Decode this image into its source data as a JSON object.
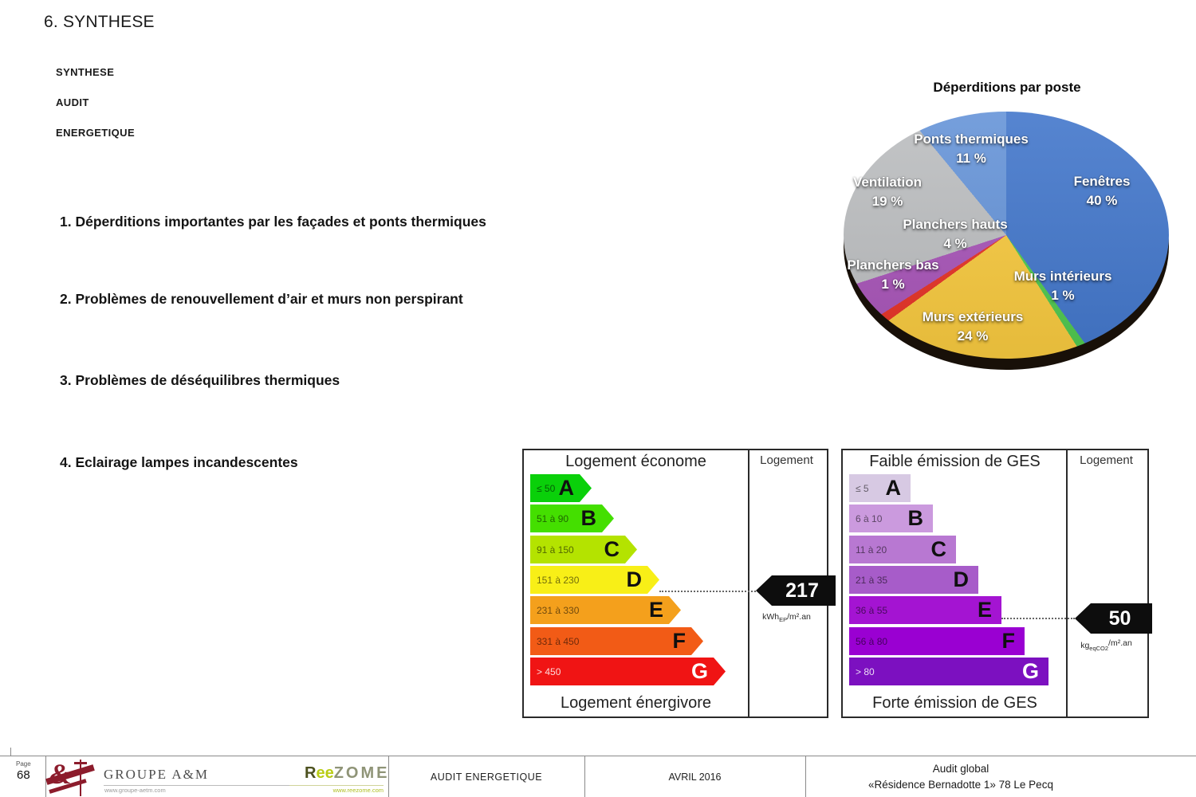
{
  "page": {
    "title": "6. SYNTHESE",
    "sidebar": [
      "SYNTHESE",
      "AUDIT",
      "ENERGETIQUE"
    ],
    "findings": [
      "1. Déperditions importantes par les façades et ponts thermiques",
      "2. Problèmes de renouvellement d’air et murs non perspirant",
      "3. Problèmes de déséquilibres thermiques",
      "4. Eclairage lampes incandescentes"
    ]
  },
  "chart_data": {
    "type": "pie",
    "title": "Déperditions par poste",
    "categories": [
      "Fenêtres",
      "Murs intérieurs",
      "Murs extérieurs",
      "Planchers bas",
      "Planchers hauts",
      "Ventilation",
      "Ponts thermiques"
    ],
    "values": [
      40,
      1,
      24,
      1,
      4,
      19,
      11
    ],
    "unit": "%",
    "colors": [
      "#4377cb",
      "#50c850",
      "#f7c93f",
      "#e63327",
      "#a855b8",
      "#bcbec0",
      "#6694d8"
    ],
    "legend": "none",
    "labels_on_slices": true,
    "style": "3d-ellipse"
  },
  "dpe": {
    "top_label": "Logement économe",
    "bottom_label": "Logement énergivore",
    "column_label": "Logement",
    "value": "217",
    "unit": {
      "pre": "kWh",
      "sub": "EP",
      "post": "/m².an"
    },
    "colors": [
      "#0ad00a",
      "#44df00",
      "#b4e300",
      "#f8ef17",
      "#f4a01c",
      "#f25b16",
      "#f01414"
    ],
    "rows": [
      {
        "range": "≤ 50",
        "letter": "A"
      },
      {
        "range": "51 à 90",
        "letter": "B"
      },
      {
        "range": "91 à 150",
        "letter": "C"
      },
      {
        "range": "151 à 230",
        "letter": "D"
      },
      {
        "range": "231 à 330",
        "letter": "E"
      },
      {
        "range": "331 à 450",
        "letter": "F"
      },
      {
        "range": "> 450",
        "letter": "G"
      }
    ]
  },
  "ges": {
    "top_label": "Faible émission de GES",
    "bottom_label": "Forte émission de GES",
    "column_label": "Logement",
    "value": "50",
    "unit": {
      "pre": "kg",
      "sub": "eqCO2",
      "post": "/m².an"
    },
    "colors": [
      "#d7c9e3",
      "#cb9ade",
      "#b878d2",
      "#a75cc9",
      "#a414d2",
      "#9a00d2",
      "#7c10c0"
    ],
    "rows": [
      {
        "range": "≤ 5",
        "letter": "A"
      },
      {
        "range": "6 à 10",
        "letter": "B"
      },
      {
        "range": "11 à 20",
        "letter": "C"
      },
      {
        "range": "21 à 35",
        "letter": "D"
      },
      {
        "range": "36 à 55",
        "letter": "E"
      },
      {
        "range": "56 à 80",
        "letter": "F"
      },
      {
        "range": "> 80",
        "letter": "G"
      }
    ]
  },
  "footer": {
    "page_label": "Page",
    "page_number": "68",
    "groupe_name": "GROUPE A&M",
    "groupe_url": "www.groupe-aetm.com",
    "reezome_r": "R",
    "reezome_ee": "ee",
    "reezome_rest": "ZOME",
    "reezome_url": "www.reezome.com",
    "doc_type": "AUDIT ENERGETIQUE",
    "date": "AVRIL 2016",
    "audit_line1": "Audit global",
    "audit_line2": "«Résidence Bernadotte 1» 78 Le Pecq"
  }
}
